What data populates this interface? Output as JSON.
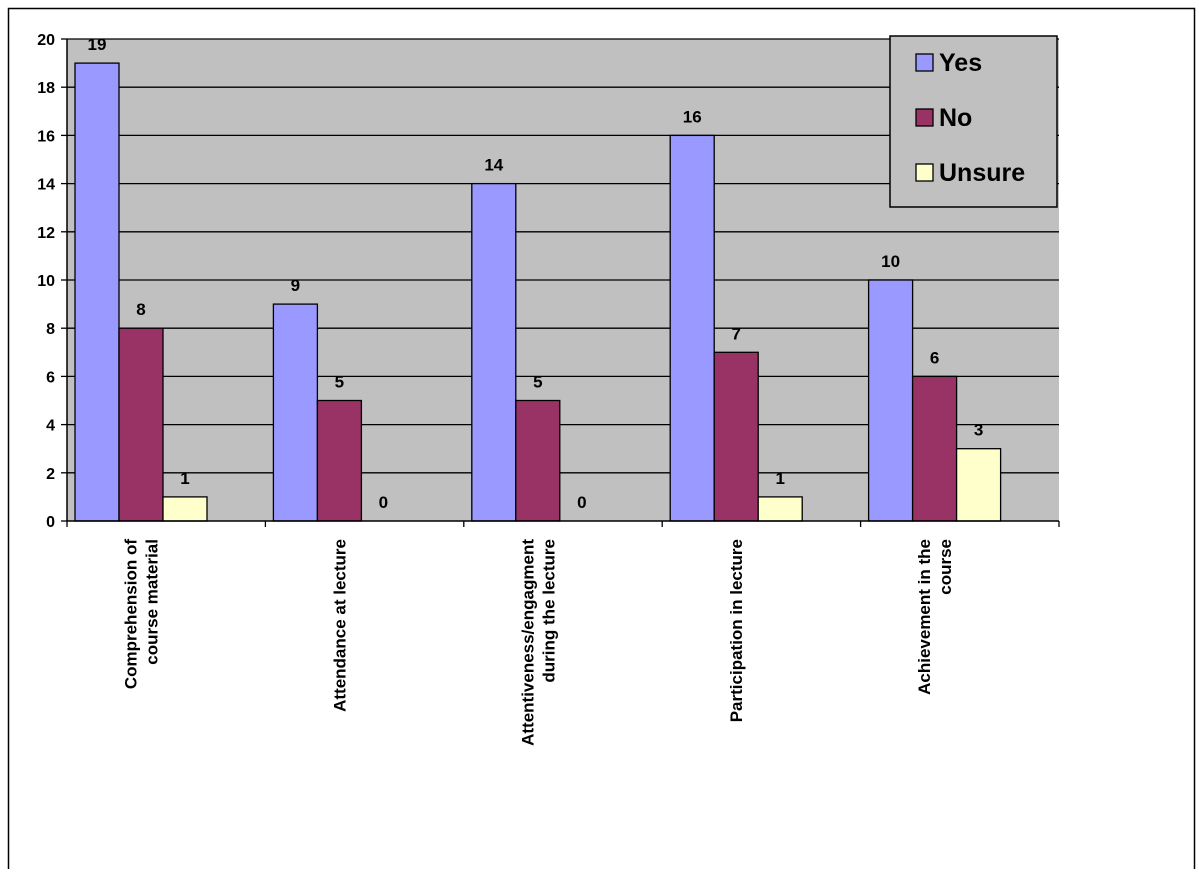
{
  "chart_data": {
    "type": "bar",
    "categories": [
      [
        "Comprehension of",
        "course material"
      ],
      [
        "Attendance at lecture"
      ],
      [
        "Attentiveness/engagment",
        "during the lecture"
      ],
      [
        "Participation in lecture"
      ],
      [
        "Achievement in the",
        "course"
      ]
    ],
    "series": [
      {
        "name": "Yes",
        "color": "#9999ff",
        "values": [
          19,
          9,
          14,
          16,
          10
        ]
      },
      {
        "name": "No",
        "color": "#993366",
        "values": [
          8,
          5,
          5,
          7,
          6
        ]
      },
      {
        "name": "Unsure",
        "color": "#ffffcc",
        "values": [
          1,
          0,
          0,
          1,
          3
        ]
      }
    ],
    "yticks": [
      "0",
      "2",
      "4",
      "6",
      "8",
      "10",
      "12",
      "14",
      "16",
      "18",
      "20"
    ],
    "ylim": [
      0,
      20
    ],
    "grid": true,
    "plot_background": "#c0c0c0",
    "legend_position": "top-right",
    "show_data_labels": true
  }
}
